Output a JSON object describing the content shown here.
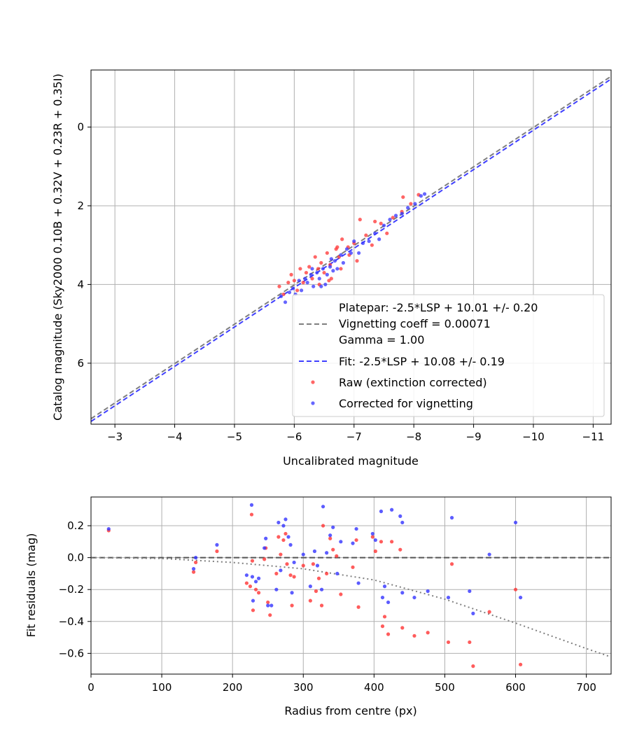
{
  "chart_data": [
    {
      "type": "scatter",
      "xlabel": "Uncalibrated magnitude",
      "ylabel": "Catalog magnitude (Sky2000 0.10B + 0.32V + 0.23R + 0.35I)",
      "xlim": [
        -2.6,
        -11.3
      ],
      "ylim": [
        7.55,
        -1.45
      ],
      "x_inverted": true,
      "y_inverted": true,
      "grid": true,
      "xticks": [
        -3,
        -4,
        -5,
        -6,
        -7,
        -8,
        -9,
        -10,
        -11
      ],
      "xtick_labels": [
        "−3",
        "−4",
        "−5",
        "−6",
        "−7",
        "−8",
        "−9",
        "−10",
        "−11"
      ],
      "yticks": [
        0,
        2,
        4,
        6
      ],
      "ytick_labels": [
        "0",
        "2",
        "4",
        "6"
      ],
      "lines": [
        {
          "name": "Platepar",
          "style": "dashed",
          "color": "#7f7f7f",
          "slope": 1.0,
          "intercept": 10.01
        },
        {
          "name": "Fit",
          "style": "dashed",
          "color": "#3f3fff",
          "slope": 1.0,
          "intercept": 10.08
        }
      ],
      "legend": {
        "position": "lower-right",
        "entries": [
          {
            "label": "Platepar: -2.5*LSP + 10.01 +/- 0.20",
            "marker": "none"
          },
          {
            "label": "Vignetting coeff = 0.00071",
            "marker": "dashed",
            "color": "#7f7f7f"
          },
          {
            "label": "Gamma = 1.00",
            "marker": "none"
          },
          {
            "label": "Fit: -2.5*LSP + 10.08 +/- 0.19",
            "marker": "dashed",
            "color": "#3f3fff"
          },
          {
            "label": "Raw (extinction corrected)",
            "marker": "dot",
            "color": "#ff3333"
          },
          {
            "label": "Corrected for vignetting",
            "marker": "dot",
            "color": "#3333ff"
          }
        ]
      },
      "series": [
        {
          "name": "Raw (extinction corrected)",
          "color": "#ff3333",
          "points": [
            [
              -5.75,
              4.05
            ],
            [
              -5.82,
              4.25
            ],
            [
              -5.9,
              3.95
            ],
            [
              -5.95,
              3.75
            ],
            [
              -6.0,
              3.9
            ],
            [
              -6.05,
              4.15
            ],
            [
              -6.1,
              3.6
            ],
            [
              -6.2,
              3.7
            ],
            [
              -6.25,
              3.55
            ],
            [
              -6.3,
              3.85
            ],
            [
              -6.35,
              3.3
            ],
            [
              -6.4,
              3.6
            ],
            [
              -6.45,
              3.45
            ],
            [
              -6.5,
              3.7
            ],
            [
              -6.55,
              3.2
            ],
            [
              -6.6,
              3.5
            ],
            [
              -6.62,
              3.85
            ],
            [
              -6.7,
              3.1
            ],
            [
              -6.75,
              3.3
            ],
            [
              -6.78,
              3.6
            ],
            [
              -6.8,
              2.85
            ],
            [
              -6.9,
              3.05
            ],
            [
              -6.92,
              3.25
            ],
            [
              -7.0,
              2.95
            ],
            [
              -7.05,
              3.4
            ],
            [
              -7.1,
              2.35
            ],
            [
              -7.2,
              2.75
            ],
            [
              -7.3,
              3.0
            ],
            [
              -7.35,
              2.4
            ],
            [
              -7.45,
              2.45
            ],
            [
              -7.55,
              2.7
            ],
            [
              -7.65,
              2.3
            ],
            [
              -7.8,
              2.15
            ],
            [
              -7.82,
              1.78
            ],
            [
              -7.95,
              1.95
            ],
            [
              -8.08,
              1.72
            ],
            [
              -6.15,
              3.95
            ],
            [
              -6.42,
              4.0
            ],
            [
              -6.58,
              3.9
            ],
            [
              -6.72,
              3.05
            ]
          ]
        },
        {
          "name": "Corrected for vignetting",
          "color": "#3333ff",
          "points": [
            [
              -5.78,
              4.3
            ],
            [
              -5.85,
              4.45
            ],
            [
              -5.92,
              4.2
            ],
            [
              -5.98,
              4.1
            ],
            [
              -6.02,
              4.25
            ],
            [
              -6.08,
              3.9
            ],
            [
              -6.12,
              4.15
            ],
            [
              -6.18,
              3.85
            ],
            [
              -6.22,
              3.95
            ],
            [
              -6.28,
              3.75
            ],
            [
              -6.32,
              4.05
            ],
            [
              -6.38,
              3.7
            ],
            [
              -6.42,
              3.85
            ],
            [
              -6.48,
              3.6
            ],
            [
              -6.52,
              4.0
            ],
            [
              -6.55,
              3.75
            ],
            [
              -6.6,
              3.55
            ],
            [
              -6.65,
              3.65
            ],
            [
              -6.68,
              3.4
            ],
            [
              -6.72,
              3.6
            ],
            [
              -6.78,
              3.25
            ],
            [
              -6.82,
              3.45
            ],
            [
              -6.88,
              3.1
            ],
            [
              -6.95,
              3.2
            ],
            [
              -7.0,
              2.9
            ],
            [
              -7.08,
              3.2
            ],
            [
              -7.15,
              2.95
            ],
            [
              -7.25,
              2.9
            ],
            [
              -7.35,
              2.7
            ],
            [
              -7.42,
              2.85
            ],
            [
              -7.5,
              2.5
            ],
            [
              -7.6,
              2.35
            ],
            [
              -7.7,
              2.25
            ],
            [
              -7.8,
              2.2
            ],
            [
              -7.9,
              2.05
            ],
            [
              -8.02,
              1.95
            ],
            [
              -8.12,
              1.75
            ],
            [
              -8.18,
              1.7
            ],
            [
              -6.45,
              4.05
            ],
            [
              -6.62,
              3.35
            ],
            [
              -6.3,
              3.6
            ]
          ]
        }
      ]
    },
    {
      "type": "scatter",
      "xlabel": "Radius from centre (px)",
      "ylabel": "Fit residuals (mag)",
      "xlim": [
        0,
        735
      ],
      "ylim": [
        -0.73,
        0.38
      ],
      "grid": true,
      "xticks": [
        0,
        100,
        200,
        300,
        400,
        500,
        600,
        700
      ],
      "xtick_labels": [
        "0",
        "100",
        "200",
        "300",
        "400",
        "500",
        "600",
        "700"
      ],
      "yticks": [
        0.2,
        0.0,
        -0.2,
        -0.4,
        -0.6
      ],
      "ytick_labels": [
        "0.2",
        "0.0",
        "−0.2",
        "−0.4",
        "−0.6"
      ],
      "lines": [
        {
          "name": "zero",
          "style": "dashed",
          "color": "#555555",
          "value": 0.0
        },
        {
          "name": "vignetting model",
          "style": "dotted",
          "color": "#7f7f7f",
          "formula": "-0.00071^2-ish quadratic",
          "points": [
            [
              0,
              0.0
            ],
            [
              100,
              -0.005
            ],
            [
              200,
              -0.03
            ],
            [
              300,
              -0.07
            ],
            [
              400,
              -0.14
            ],
            [
              500,
              -0.26
            ],
            [
              600,
              -0.41
            ],
            [
              700,
              -0.57
            ],
            [
              733,
              -0.62
            ]
          ]
        }
      ],
      "series": [
        {
          "name": "Raw (extinction corrected)",
          "color": "#ff3333",
          "points": [
            [
              25,
              0.17
            ],
            [
              145,
              -0.09
            ],
            [
              148,
              -0.03
            ],
            [
              178,
              0.04
            ],
            [
              220,
              -0.16
            ],
            [
              225,
              -0.18
            ],
            [
              227,
              0.27
            ],
            [
              228,
              -0.02
            ],
            [
              229,
              -0.33
            ],
            [
              233,
              -0.2
            ],
            [
              237,
              -0.22
            ],
            [
              245,
              -0.01
            ],
            [
              247,
              0.06
            ],
            [
              250,
              -0.28
            ],
            [
              253,
              -0.36
            ],
            [
              262,
              -0.1
            ],
            [
              265,
              0.13
            ],
            [
              268,
              0.02
            ],
            [
              272,
              0.11
            ],
            [
              275,
              0.15
            ],
            [
              277,
              -0.04
            ],
            [
              282,
              -0.11
            ],
            [
              284,
              -0.3
            ],
            [
              287,
              -0.12
            ],
            [
              300,
              -0.05
            ],
            [
              310,
              -0.27
            ],
            [
              314,
              -0.04
            ],
            [
              318,
              -0.21
            ],
            [
              322,
              -0.13
            ],
            [
              326,
              -0.3
            ],
            [
              328,
              0.2
            ],
            [
              333,
              -0.1
            ],
            [
              338,
              0.12
            ],
            [
              342,
              0.05
            ],
            [
              347,
              0.01
            ],
            [
              353,
              -0.23
            ],
            [
              370,
              -0.06
            ],
            [
              375,
              0.11
            ],
            [
              378,
              -0.31
            ],
            [
              398,
              0.13
            ],
            [
              402,
              0.04
            ],
            [
              410,
              0.1
            ],
            [
              412,
              -0.43
            ],
            [
              415,
              -0.37
            ],
            [
              420,
              -0.48
            ],
            [
              425,
              0.1
            ],
            [
              437,
              0.05
            ],
            [
              440,
              -0.44
            ],
            [
              457,
              -0.49
            ],
            [
              476,
              -0.47
            ],
            [
              505,
              -0.53
            ],
            [
              510,
              -0.04
            ],
            [
              535,
              -0.53
            ],
            [
              540,
              -0.68
            ],
            [
              563,
              -0.34
            ],
            [
              600,
              -0.2
            ],
            [
              607,
              -0.67
            ]
          ]
        },
        {
          "name": "Corrected for vignetting",
          "color": "#3333ff",
          "points": [
            [
              25,
              0.18
            ],
            [
              145,
              -0.07
            ],
            [
              148,
              0.0
            ],
            [
              178,
              0.08
            ],
            [
              220,
              -0.11
            ],
            [
              227,
              0.33
            ],
            [
              228,
              -0.12
            ],
            [
              229,
              -0.27
            ],
            [
              233,
              -0.15
            ],
            [
              237,
              -0.13
            ],
            [
              245,
              0.06
            ],
            [
              247,
              0.12
            ],
            [
              250,
              -0.3
            ],
            [
              255,
              -0.3
            ],
            [
              262,
              -0.2
            ],
            [
              265,
              0.22
            ],
            [
              268,
              -0.08
            ],
            [
              272,
              0.2
            ],
            [
              275,
              0.24
            ],
            [
              279,
              0.13
            ],
            [
              282,
              0.08
            ],
            [
              284,
              -0.22
            ],
            [
              287,
              -0.03
            ],
            [
              300,
              0.02
            ],
            [
              310,
              -0.18
            ],
            [
              316,
              0.04
            ],
            [
              320,
              -0.05
            ],
            [
              326,
              -0.2
            ],
            [
              328,
              0.32
            ],
            [
              333,
              0.03
            ],
            [
              338,
              0.14
            ],
            [
              342,
              0.19
            ],
            [
              348,
              -0.1
            ],
            [
              353,
              0.1
            ],
            [
              370,
              0.09
            ],
            [
              375,
              0.18
            ],
            [
              378,
              -0.16
            ],
            [
              398,
              0.15
            ],
            [
              402,
              0.11
            ],
            [
              410,
              0.29
            ],
            [
              412,
              -0.25
            ],
            [
              415,
              -0.18
            ],
            [
              420,
              -0.28
            ],
            [
              425,
              0.3
            ],
            [
              437,
              0.26
            ],
            [
              440,
              0.22
            ],
            [
              440,
              -0.22
            ],
            [
              457,
              -0.25
            ],
            [
              476,
              -0.21
            ],
            [
              505,
              -0.25
            ],
            [
              510,
              0.25
            ],
            [
              535,
              -0.21
            ],
            [
              540,
              -0.35
            ],
            [
              563,
              0.02
            ],
            [
              600,
              0.22
            ],
            [
              607,
              -0.25
            ]
          ]
        }
      ]
    }
  ]
}
